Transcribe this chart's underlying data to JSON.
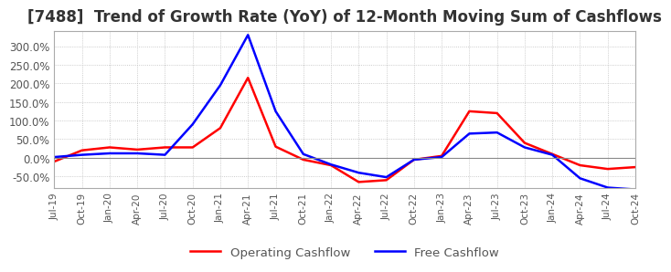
{
  "title": "[7488]  Trend of Growth Rate (YoY) of 12-Month Moving Sum of Cashflows",
  "title_fontsize": 12,
  "ylim": [
    -80,
    340
  ],
  "yticks": [
    -50,
    0,
    50,
    100,
    150,
    200,
    250,
    300
  ],
  "background_color": "#ffffff",
  "grid_color": "#bbbbbb",
  "legend_labels": [
    "Operating Cashflow",
    "Free Cashflow"
  ],
  "line_colors": [
    "#ff0000",
    "#0000ff"
  ],
  "x_labels": [
    "Jul-19",
    "Oct-19",
    "Jan-20",
    "Apr-20",
    "Jul-20",
    "Oct-20",
    "Jan-21",
    "Apr-21",
    "Jul-21",
    "Oct-21",
    "Jan-22",
    "Apr-22",
    "Jul-22",
    "Oct-22",
    "Jan-23",
    "Apr-23",
    "Jul-23",
    "Oct-23",
    "Jan-24",
    "Apr-24",
    "Jul-24",
    "Oct-24"
  ],
  "operating_cashflow": [
    -10,
    20,
    28,
    22,
    28,
    28,
    80,
    215,
    30,
    -5,
    -20,
    -65,
    -60,
    -5,
    5,
    125,
    120,
    40,
    10,
    -20,
    -30,
    -25
  ],
  "free_cashflow": [
    2,
    8,
    12,
    12,
    8,
    90,
    195,
    330,
    125,
    10,
    -18,
    -40,
    -52,
    -5,
    2,
    65,
    68,
    28,
    8,
    -55,
    -80,
    -85
  ]
}
